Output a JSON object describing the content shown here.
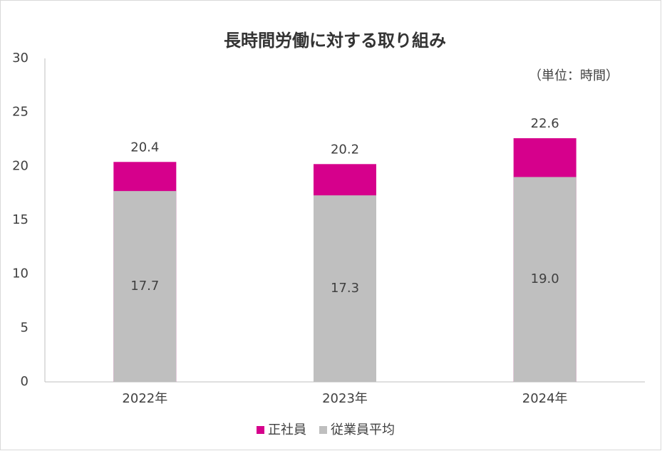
{
  "chart_data": {
    "type": "overlap-bar",
    "title": "長時間労働に対する取り組み",
    "annotation": "（単位：時間）",
    "categories": [
      "2022年",
      "2023年",
      "2024年"
    ],
    "series": [
      {
        "name": "正社員",
        "color": "#d6008c",
        "values": [
          20.4,
          20.2,
          22.6
        ]
      },
      {
        "name": "従業員平均",
        "color": "#bfbfbf",
        "values": [
          17.7,
          17.3,
          19.0
        ],
        "value_labels": [
          "17.7",
          "17.3",
          "19.0"
        ]
      }
    ],
    "ylim": [
      0,
      30
    ],
    "yticks": [
      0,
      5,
      10,
      15,
      20,
      25,
      30
    ],
    "grid": false
  }
}
